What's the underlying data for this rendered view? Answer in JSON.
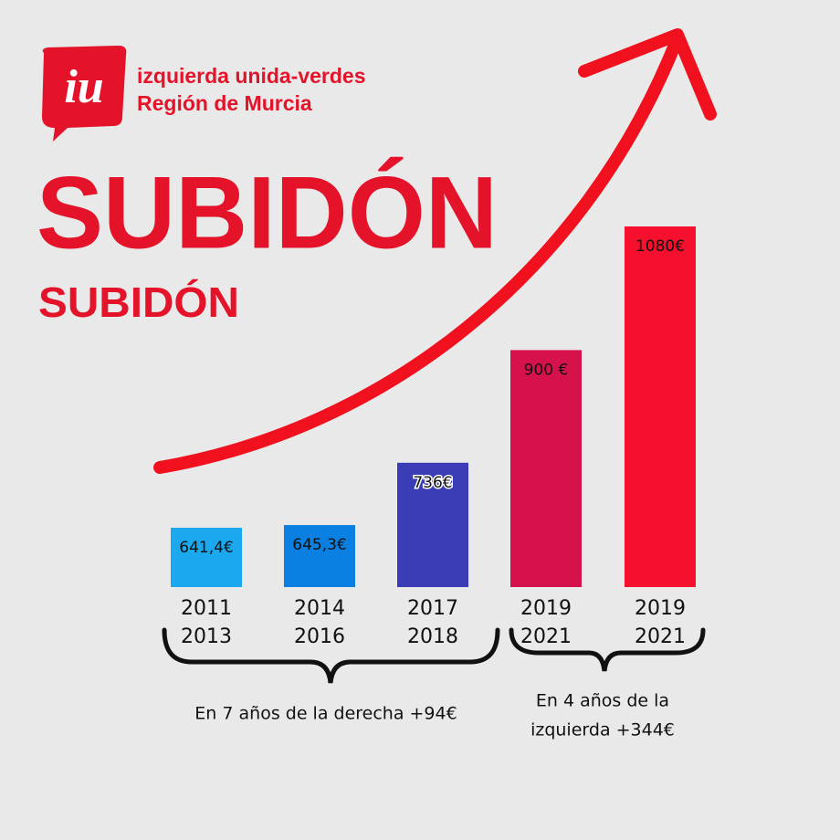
{
  "logo": {
    "mark": "iu",
    "lines": [
      "izquierda unida-verdes",
      "Región de Murcia"
    ]
  },
  "chart_data": {
    "type": "bar",
    "title": "SUBIDÓN",
    "subtitle": "SUBIDÓN",
    "categories": [
      [
        "2011",
        "2013"
      ],
      [
        "2014",
        "2016"
      ],
      [
        "2017",
        "2018"
      ],
      [
        "2019",
        "2021"
      ],
      [
        "2019",
        "2021"
      ]
    ],
    "values": [
      641.4,
      645.3,
      736,
      900,
      1080
    ],
    "value_labels": [
      "641,4€",
      "645,3€",
      "736€",
      "900 €",
      "1080€"
    ],
    "colors": [
      "#1ca8ef",
      "#0a80e2",
      "#3b3db6",
      "#d6124c",
      "#f7102e"
    ],
    "annotations": [
      [
        "En 7 años de la derecha +94€"
      ],
      [
        "En 4 años de la",
        "izquierda +344€"
      ]
    ]
  }
}
